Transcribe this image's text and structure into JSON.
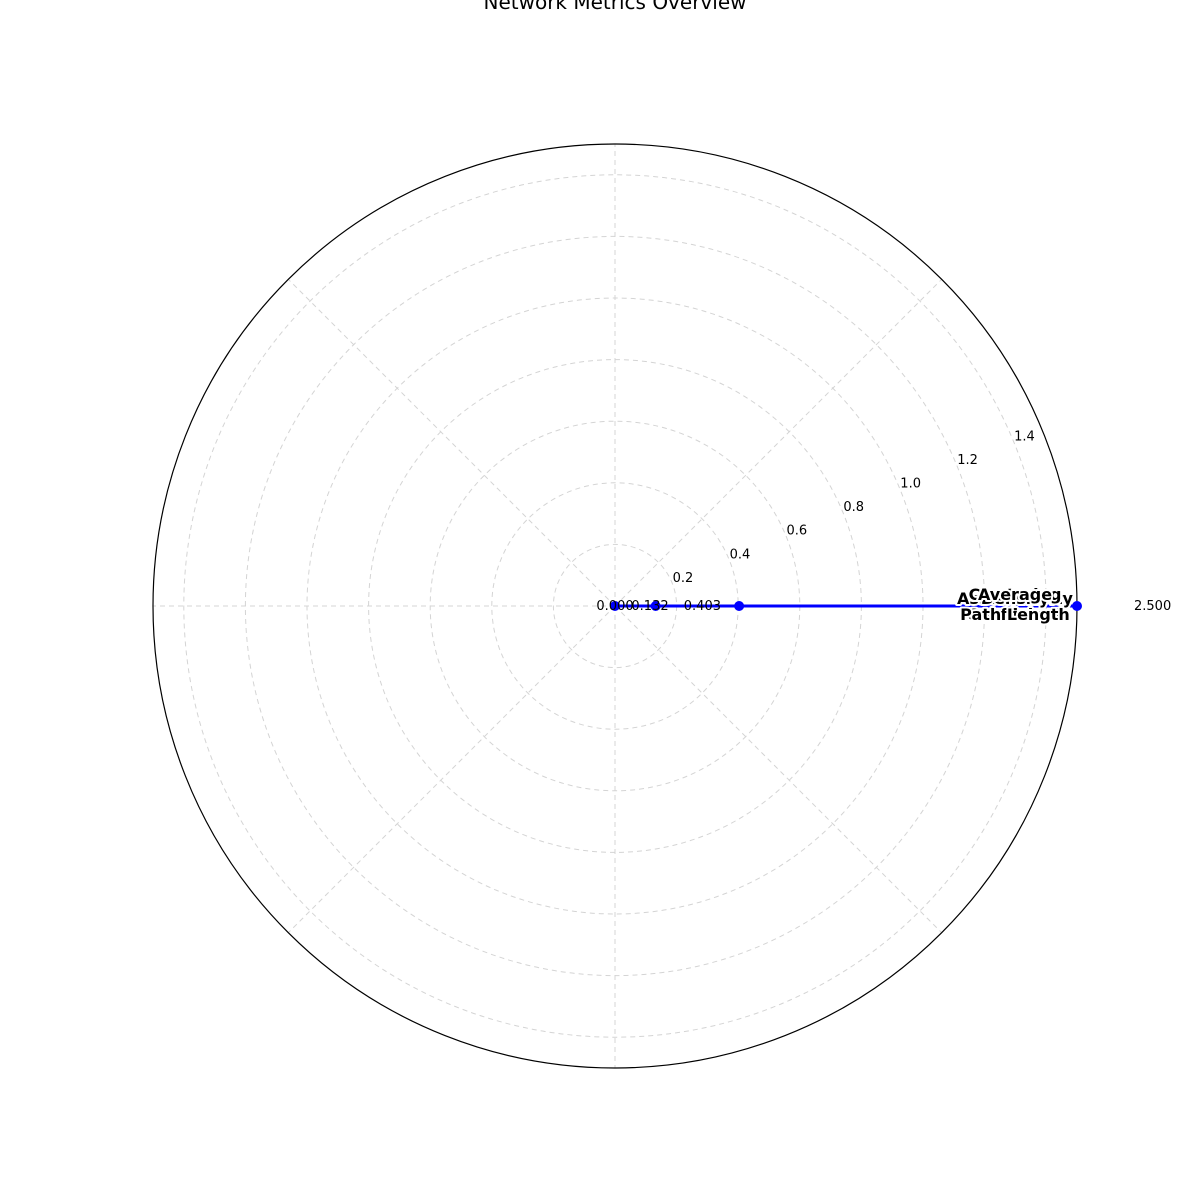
{
  "chart_data": {
    "type": "radar",
    "title": "Network Metrics Overview",
    "categories": [
      "Average Path Length",
      "Density",
      "Clustering Coefficient",
      "Assortativity"
    ],
    "series": [
      {
        "values": [
          2.5,
          0.403,
          0.132,
          0.0
        ],
        "value_labels": [
          "2.500",
          "0.403",
          "0.132",
          "0.000"
        ]
      }
    ],
    "radial_ticks": [
      "0.2",
      "0.4",
      "0.6",
      "0.8",
      "1.0",
      "1.2",
      "1.4"
    ],
    "radial_range": [
      0,
      1.5
    ],
    "grid": true,
    "series_color": "#0000ff",
    "grid_color": "#d4d4d4"
  }
}
